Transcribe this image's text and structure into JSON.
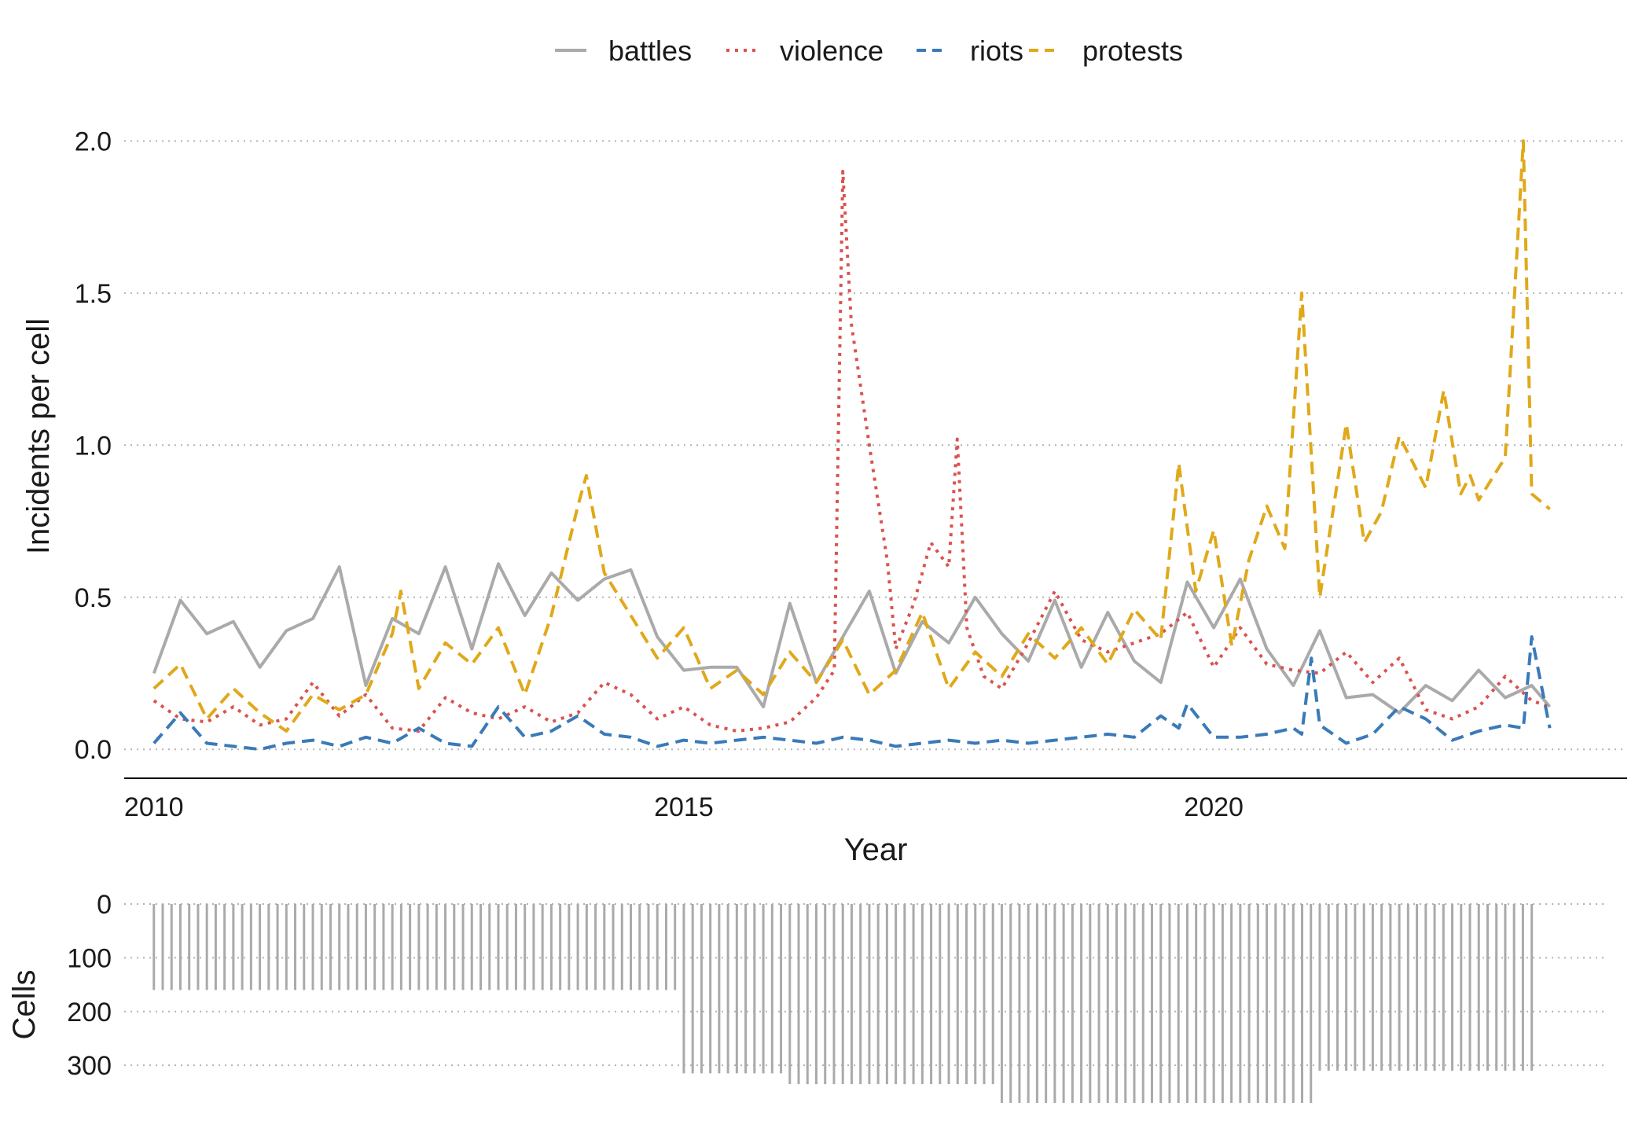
{
  "chart_data": [
    {
      "type": "line",
      "title": "",
      "xlabel": "Year",
      "ylabel": "Incidents per cell",
      "xlim": [
        2009.72,
        2023.9
      ],
      "ylim": [
        -0.095,
        2.05
      ],
      "xticks": [
        2010,
        2015,
        2020
      ],
      "xtick_labels": [
        "2010",
        "2015",
        "2020"
      ],
      "yticks": [
        0.0,
        0.5,
        1.0,
        1.5,
        2.0
      ],
      "ytick_labels": [
        "0.0",
        "0.5",
        "1.0",
        "1.5",
        "2.0"
      ],
      "grid": "horizontal dotted",
      "legend": {
        "position": "top",
        "entries": [
          "battles",
          "violence",
          "riots",
          "protests"
        ]
      },
      "series": [
        {
          "name": "battles",
          "color": "#aaaaaa",
          "dash": "solid",
          "x": [
            2010.0,
            2010.25,
            2010.5,
            2010.75,
            2011.0,
            2011.25,
            2011.5,
            2011.75,
            2012.0,
            2012.25,
            2012.5,
            2012.75,
            2013.0,
            2013.25,
            2013.5,
            2013.75,
            2014.0,
            2014.25,
            2014.5,
            2014.75,
            2015.0,
            2015.25,
            2015.5,
            2015.75,
            2016.0,
            2016.25,
            2016.5,
            2016.75,
            2017.0,
            2017.25,
            2017.5,
            2017.75,
            2018.0,
            2018.25,
            2018.5,
            2018.75,
            2019.0,
            2019.25,
            2019.5,
            2019.75,
            2020.0,
            2020.25,
            2020.5,
            2020.75,
            2021.0,
            2021.25,
            2021.5,
            2021.75,
            2022.0,
            2022.25,
            2022.5,
            2022.75,
            2023.0,
            2023.17
          ],
          "y": [
            0.25,
            0.49,
            0.38,
            0.42,
            0.27,
            0.39,
            0.43,
            0.6,
            0.21,
            0.43,
            0.38,
            0.6,
            0.33,
            0.61,
            0.44,
            0.58,
            0.49,
            0.56,
            0.59,
            0.37,
            0.26,
            0.27,
            0.27,
            0.14,
            0.48,
            0.22,
            0.37,
            0.52,
            0.25,
            0.42,
            0.35,
            0.5,
            0.38,
            0.29,
            0.49,
            0.27,
            0.45,
            0.29,
            0.22,
            0.55,
            0.4,
            0.56,
            0.33,
            0.21,
            0.39,
            0.17,
            0.18,
            0.12,
            0.21,
            0.16,
            0.26,
            0.17,
            0.21,
            0.14
          ]
        },
        {
          "name": "violence",
          "color": "#d9534f",
          "dash": "dotted",
          "x": [
            2010.0,
            2010.25,
            2010.5,
            2010.75,
            2011.0,
            2011.25,
            2011.5,
            2011.75,
            2012.0,
            2012.25,
            2012.5,
            2012.75,
            2013.0,
            2013.25,
            2013.5,
            2013.75,
            2014.0,
            2014.25,
            2014.5,
            2014.75,
            2015.0,
            2015.25,
            2015.5,
            2015.75,
            2016.0,
            2016.25,
            2016.42,
            2016.5,
            2016.58,
            2016.75,
            2016.92,
            2017.0,
            2017.17,
            2017.33,
            2017.5,
            2017.58,
            2017.67,
            2017.83,
            2018.0,
            2018.25,
            2018.5,
            2018.75,
            2019.0,
            2019.25,
            2019.5,
            2019.75,
            2020.0,
            2020.25,
            2020.5,
            2020.75,
            2021.0,
            2021.25,
            2021.5,
            2021.75,
            2022.0,
            2022.25,
            2022.5,
            2022.75,
            2023.0,
            2023.17
          ],
          "y": [
            0.16,
            0.1,
            0.09,
            0.14,
            0.08,
            0.1,
            0.22,
            0.11,
            0.18,
            0.07,
            0.06,
            0.17,
            0.12,
            0.1,
            0.14,
            0.09,
            0.12,
            0.22,
            0.18,
            0.1,
            0.14,
            0.08,
            0.06,
            0.07,
            0.09,
            0.17,
            0.26,
            1.9,
            1.4,
            1.0,
            0.62,
            0.33,
            0.48,
            0.68,
            0.6,
            1.02,
            0.4,
            0.24,
            0.2,
            0.35,
            0.52,
            0.36,
            0.32,
            0.35,
            0.38,
            0.45,
            0.27,
            0.4,
            0.28,
            0.26,
            0.25,
            0.32,
            0.22,
            0.3,
            0.13,
            0.1,
            0.14,
            0.24,
            0.16,
            0.14
          ]
        },
        {
          "name": "riots",
          "color": "#3a7ab8",
          "dash": "dashed",
          "x": [
            2010.0,
            2010.25,
            2010.5,
            2010.75,
            2011.0,
            2011.25,
            2011.5,
            2011.75,
            2012.0,
            2012.25,
            2012.5,
            2012.75,
            2013.0,
            2013.25,
            2013.5,
            2013.75,
            2014.0,
            2014.25,
            2014.5,
            2014.75,
            2015.0,
            2015.25,
            2015.5,
            2015.75,
            2016.0,
            2016.25,
            2016.5,
            2016.75,
            2017.0,
            2017.25,
            2017.5,
            2017.75,
            2018.0,
            2018.25,
            2018.5,
            2018.75,
            2019.0,
            2019.25,
            2019.5,
            2019.67,
            2019.75,
            2020.0,
            2020.25,
            2020.5,
            2020.75,
            2020.83,
            2020.92,
            2021.0,
            2021.25,
            2021.5,
            2021.75,
            2022.0,
            2022.25,
            2022.5,
            2022.75,
            2022.92,
            2023.0,
            2023.17
          ],
          "y": [
            0.02,
            0.12,
            0.02,
            0.01,
            0.0,
            0.02,
            0.03,
            0.01,
            0.04,
            0.02,
            0.07,
            0.02,
            0.01,
            0.14,
            0.04,
            0.06,
            0.11,
            0.05,
            0.04,
            0.01,
            0.03,
            0.02,
            0.03,
            0.04,
            0.03,
            0.02,
            0.04,
            0.03,
            0.01,
            0.02,
            0.03,
            0.02,
            0.03,
            0.02,
            0.03,
            0.04,
            0.05,
            0.04,
            0.11,
            0.07,
            0.15,
            0.04,
            0.04,
            0.05,
            0.07,
            0.05,
            0.3,
            0.08,
            0.02,
            0.05,
            0.14,
            0.1,
            0.03,
            0.06,
            0.08,
            0.07,
            0.37,
            0.07
          ]
        },
        {
          "name": "protests",
          "color": "#e0a91b",
          "dash": "dashed",
          "x": [
            2010.0,
            2010.25,
            2010.5,
            2010.75,
            2011.0,
            2011.25,
            2011.5,
            2011.75,
            2012.0,
            2012.25,
            2012.33,
            2012.5,
            2012.75,
            2013.0,
            2013.25,
            2013.5,
            2013.75,
            2014.0,
            2014.08,
            2014.25,
            2014.5,
            2014.75,
            2015.0,
            2015.25,
            2015.5,
            2015.75,
            2016.0,
            2016.25,
            2016.5,
            2016.75,
            2017.0,
            2017.25,
            2017.5,
            2017.75,
            2018.0,
            2018.25,
            2018.5,
            2018.75,
            2019.0,
            2019.25,
            2019.5,
            2019.67,
            2019.83,
            2020.0,
            2020.17,
            2020.33,
            2020.5,
            2020.67,
            2020.83,
            2021.0,
            2021.25,
            2021.42,
            2021.58,
            2021.75,
            2022.0,
            2022.17,
            2022.33,
            2022.42,
            2022.5,
            2022.75,
            2022.92,
            2023.0,
            2023.17
          ],
          "y": [
            0.2,
            0.28,
            0.1,
            0.2,
            0.12,
            0.06,
            0.18,
            0.13,
            0.18,
            0.38,
            0.52,
            0.2,
            0.35,
            0.28,
            0.4,
            0.18,
            0.44,
            0.8,
            0.9,
            0.58,
            0.44,
            0.3,
            0.4,
            0.2,
            0.26,
            0.18,
            0.32,
            0.22,
            0.36,
            0.18,
            0.26,
            0.45,
            0.2,
            0.32,
            0.24,
            0.38,
            0.3,
            0.4,
            0.28,
            0.46,
            0.36,
            0.94,
            0.52,
            0.72,
            0.34,
            0.62,
            0.8,
            0.66,
            1.5,
            0.5,
            1.07,
            0.68,
            0.78,
            1.03,
            0.86,
            1.18,
            0.84,
            0.9,
            0.82,
            0.96,
            2.0,
            0.84,
            0.79
          ]
        }
      ]
    },
    {
      "type": "bar",
      "title": "",
      "xlabel": "",
      "ylabel": "Cells",
      "ylim": [
        0,
        370
      ],
      "inverted_y": true,
      "yticks": [
        0,
        100,
        200,
        300
      ],
      "ytick_labels": [
        "0",
        "100",
        "200",
        "300"
      ],
      "grid": "horizontal dotted",
      "bar_color": "#aaaaaa",
      "bars_per_year": 12,
      "segments": [
        {
          "start": 2010.0,
          "end": 2015.0,
          "value": 160
        },
        {
          "start": 2015.0,
          "end": 2016.0,
          "value": 315
        },
        {
          "start": 2016.0,
          "end": 2018.0,
          "value": 335
        },
        {
          "start": 2018.0,
          "end": 2021.0,
          "value": 370
        },
        {
          "start": 2021.0,
          "end": 2023.0,
          "value": 310
        }
      ]
    }
  ]
}
